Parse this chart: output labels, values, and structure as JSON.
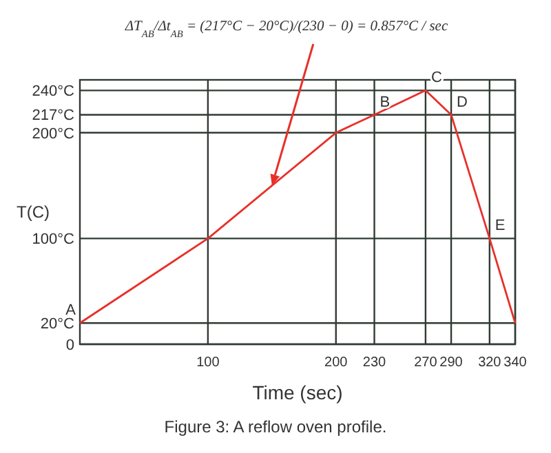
{
  "chart_data": {
    "type": "line",
    "xlabel": "Time (sec)",
    "ylabel": "T(C)",
    "x": [
      0,
      100,
      200,
      230,
      270,
      290,
      320,
      340
    ],
    "series": [
      {
        "color": "#e8302a",
        "values": [
          20,
          100,
          200,
          217,
          240,
          217,
          100,
          20
        ]
      }
    ],
    "xlim": [
      0,
      340
    ],
    "ylim": [
      0,
      250
    ],
    "xticks": [
      100,
      200,
      230,
      270,
      290,
      320,
      340
    ],
    "yticks": [
      0,
      {
        "value": 20,
        "label": "20°C"
      },
      {
        "value": 100,
        "label": "100°C"
      },
      {
        "value": 200,
        "label": "200°C"
      },
      {
        "value": 217,
        "label": "217°C"
      },
      {
        "value": 240,
        "label": "240°C"
      }
    ],
    "grid": true,
    "marker": "none",
    "line_style": "solid",
    "annotations": [
      {
        "text": "A",
        "x": 0,
        "y": 20
      },
      {
        "text": "B",
        "x": 230,
        "y": 217
      },
      {
        "text": "C",
        "x": 270,
        "y": 240
      },
      {
        "text": "D",
        "x": 290,
        "y": 217
      },
      {
        "text": "E",
        "x": 320,
        "y": 100
      },
      {
        "text": "ΔT$_{AB}$/Δt$_{AB}$ = (217°C − 20°C)/(230 − 0) = 0.857°C / sec",
        "x": 150,
        "y": 150
      },
      "Figure 3: A reflow oven profile."
    ]
  }
}
